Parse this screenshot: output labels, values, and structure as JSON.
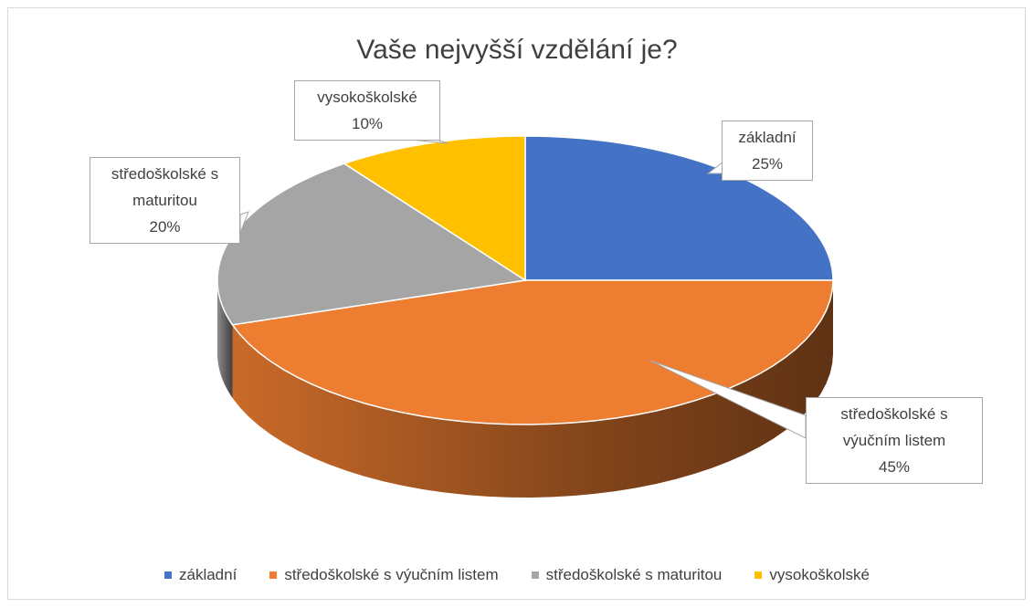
{
  "chart_data": {
    "type": "pie3d",
    "title": "Vaše nejvyšší vzdělání je?",
    "categories": [
      "základní",
      "středoškolské s výučním listem",
      "středoškolské s maturitou",
      "vysokoškolské"
    ],
    "values": [
      25,
      45,
      20,
      10
    ],
    "value_labels": [
      "25%",
      "45%",
      "20%",
      "10%"
    ],
    "colors": [
      "#4472c4",
      "#ed7d31",
      "#a5a5a5",
      "#ffc000"
    ],
    "legend": "bottom"
  }
}
